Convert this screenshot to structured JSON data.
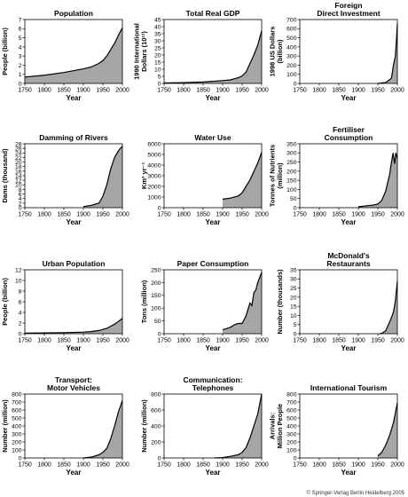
{
  "copyright": "© Springer-Verlag Berlin Heidelberg 2005",
  "style": {
    "fill": "#a6a6a6",
    "stroke": "#000000"
  },
  "chart_data": [
    {
      "type": "area",
      "title": [
        "Population"
      ],
      "ylabel": [
        "People (billion)"
      ],
      "xlabel": "Year",
      "xlim": [
        1750,
        2000
      ],
      "xticks": [
        1750,
        1800,
        1850,
        1900,
        1950,
        2000
      ],
      "ylim": [
        0,
        7
      ],
      "yticks": [
        0,
        1,
        2,
        3,
        4,
        5,
        6,
        7
      ],
      "x": [
        1750,
        1800,
        1850,
        1900,
        1920,
        1940,
        1950,
        1960,
        1970,
        1980,
        1990,
        2000
      ],
      "y": [
        0.7,
        0.9,
        1.2,
        1.6,
        1.8,
        2.2,
        2.5,
        3.0,
        3.7,
        4.4,
        5.3,
        6.1
      ]
    },
    {
      "type": "area",
      "title": [
        "Total Real GDP"
      ],
      "ylabel": [
        "1990 International",
        "Dollars (10¹²)"
      ],
      "xlabel": "Year",
      "xlim": [
        1750,
        2000
      ],
      "xticks": [
        1750,
        1800,
        1850,
        1900,
        1950,
        2000
      ],
      "ylim": [
        0,
        45
      ],
      "yticks": [
        0,
        5,
        10,
        15,
        20,
        25,
        30,
        35,
        40,
        45
      ],
      "x": [
        1750,
        1800,
        1850,
        1900,
        1920,
        1940,
        1950,
        1960,
        1970,
        1980,
        1990,
        2000
      ],
      "y": [
        0.3,
        0.6,
        1.0,
        2.0,
        2.5,
        4.0,
        5.3,
        8.0,
        14.0,
        20.0,
        27.0,
        37.0
      ]
    },
    {
      "type": "area",
      "title": [
        "Foreign",
        "Direct Investment"
      ],
      "ylabel": [
        "1998 US Dollars",
        "(billion)"
      ],
      "xlabel": "Year",
      "xlim": [
        1750,
        2000
      ],
      "xticks": [
        1750,
        1800,
        1850,
        1900,
        1950,
        2000
      ],
      "ylim": [
        0,
        700
      ],
      "yticks": [
        0,
        100,
        200,
        300,
        400,
        500,
        600,
        700
      ],
      "x": [
        1950,
        1960,
        1970,
        1980,
        1985,
        1990,
        1995,
        1998,
        2000
      ],
      "y": [
        0,
        5,
        10,
        40,
        60,
        200,
        300,
        500,
        650
      ]
    },
    {
      "type": "area",
      "title": [
        "Damming of Rivers"
      ],
      "ylabel": [
        "Dams (thousand)"
      ],
      "xlabel": "Year",
      "xlim": [
        1750,
        2000
      ],
      "xticks": [
        1750,
        1800,
        1850,
        1900,
        1950,
        2000
      ],
      "ylim": [
        0,
        28
      ],
      "yticks": [
        0,
        2,
        4,
        6,
        8,
        10,
        12,
        14,
        16,
        18,
        20,
        22,
        24,
        26,
        28
      ],
      "x": [
        1900,
        1920,
        1940,
        1950,
        1960,
        1970,
        1980,
        1990,
        2000
      ],
      "y": [
        0.5,
        1.0,
        2.0,
        5.0,
        10.0,
        17.0,
        22.0,
        25.0,
        27.0
      ]
    },
    {
      "type": "area",
      "title": [
        "Water Use"
      ],
      "ylabel": [
        "Km³ yr⁻¹"
      ],
      "xlabel": "Year",
      "xlim": [
        1750,
        2000
      ],
      "xticks": [
        1750,
        1800,
        1850,
        1900,
        1950,
        2000
      ],
      "ylim": [
        0,
        6000
      ],
      "yticks": [
        0,
        1000,
        2000,
        3000,
        4000,
        5000,
        6000
      ],
      "x": [
        1900,
        1920,
        1940,
        1950,
        1960,
        1970,
        1980,
        1990,
        2000
      ],
      "y": [
        800,
        900,
        1100,
        1400,
        2000,
        2600,
        3400,
        4200,
        5200
      ]
    },
    {
      "type": "area",
      "title": [
        "Fertiliser",
        "Consumption"
      ],
      "ylabel": [
        "Tonnes of Nutrients",
        "(million)"
      ],
      "xlabel": "Year",
      "xlim": [
        1750,
        2000
      ],
      "xticks": [
        1750,
        1800,
        1850,
        1900,
        1950,
        2000
      ],
      "ylim": [
        0,
        350
      ],
      "yticks": [
        0,
        50,
        100,
        150,
        200,
        250,
        300,
        350
      ],
      "x": [
        1900,
        1920,
        1940,
        1950,
        1960,
        1970,
        1980,
        1985,
        1989,
        1993,
        1996,
        2000
      ],
      "y": [
        5,
        10,
        15,
        20,
        40,
        90,
        180,
        250,
        300,
        240,
        300,
        270
      ]
    },
    {
      "type": "area",
      "title": [
        "Urban Population"
      ],
      "ylabel": [
        "People (billion)"
      ],
      "xlabel": "Year",
      "xlim": [
        1750,
        2000
      ],
      "xticks": [
        1750,
        1800,
        1850,
        1900,
        1950,
        2000
      ],
      "ylim": [
        0,
        12
      ],
      "yticks": [
        0,
        2,
        4,
        6,
        8,
        10,
        12
      ],
      "x": [
        1750,
        1800,
        1850,
        1900,
        1920,
        1940,
        1950,
        1960,
        1970,
        1980,
        1990,
        2000
      ],
      "y": [
        0.1,
        0.15,
        0.2,
        0.3,
        0.4,
        0.6,
        0.8,
        1.0,
        1.4,
        1.8,
        2.3,
        2.9
      ]
    },
    {
      "type": "area",
      "title": [
        "Paper Consumption"
      ],
      "ylabel": [
        "Tons (million)"
      ],
      "xlabel": "Year",
      "xlim": [
        1750,
        2000
      ],
      "xticks": [
        1750,
        1800,
        1850,
        1900,
        1950,
        2000
      ],
      "ylim": [
        0,
        250
      ],
      "yticks": [
        0,
        50,
        100,
        150,
        200,
        250
      ],
      "x": [
        1900,
        1910,
        1920,
        1930,
        1940,
        1950,
        1960,
        1970,
        1975,
        1980,
        1985,
        1990,
        1995,
        2000
      ],
      "y": [
        15,
        20,
        25,
        35,
        40,
        40,
        70,
        120,
        110,
        160,
        170,
        200,
        220,
        240
      ]
    },
    {
      "type": "area",
      "title": [
        "McDonald's",
        "Restaurants"
      ],
      "ylabel": [
        "Number (thousands)"
      ],
      "xlabel": "Year",
      "xlim": [
        1750,
        2000
      ],
      "xticks": [
        1750,
        1800,
        1850,
        1900,
        1950,
        2000
      ],
      "ylim": [
        0,
        35
      ],
      "yticks": [
        0,
        5,
        10,
        15,
        20,
        25,
        30,
        35
      ],
      "x": [
        1955,
        1960,
        1970,
        1980,
        1990,
        1995,
        2000
      ],
      "y": [
        0,
        0.2,
        1.6,
        6.3,
        11.8,
        18.0,
        28.7
      ]
    },
    {
      "type": "area",
      "title": [
        "Transport:",
        "Motor Vehicles"
      ],
      "ylabel": [
        "Number (million)"
      ],
      "xlabel": "Year",
      "xlim": [
        1750,
        2000
      ],
      "xticks": [
        1750,
        1800,
        1850,
        1900,
        1950,
        2000
      ],
      "ylim": [
        0,
        800
      ],
      "yticks": [
        0,
        100,
        200,
        300,
        400,
        500,
        600,
        700,
        800
      ],
      "x": [
        1900,
        1920,
        1940,
        1950,
        1960,
        1970,
        1980,
        1990,
        2000
      ],
      "y": [
        0,
        10,
        40,
        70,
        120,
        240,
        400,
        580,
        720
      ]
    },
    {
      "type": "area",
      "title": [
        "Communication:",
        "Telephones"
      ],
      "ylabel": [
        "Number (million)"
      ],
      "xlabel": "Year",
      "xlim": [
        1750,
        2000
      ],
      "xticks": [
        1750,
        1800,
        1850,
        1900,
        1950,
        2000
      ],
      "ylim": [
        0,
        800
      ],
      "yticks": [
        0,
        200,
        400,
        600,
        800
      ],
      "x": [
        1880,
        1900,
        1920,
        1940,
        1950,
        1960,
        1970,
        1980,
        1990,
        2000
      ],
      "y": [
        0,
        5,
        20,
        40,
        70,
        130,
        250,
        400,
        550,
        800
      ]
    },
    {
      "type": "area",
      "title": [
        "International Tourism"
      ],
      "ylabel": [
        "Arrivals:",
        "Million People"
      ],
      "xlabel": "Year",
      "xlim": [
        1750,
        2000
      ],
      "xticks": [
        1750,
        1800,
        1850,
        1900,
        1950,
        2000
      ],
      "ylim": [
        0,
        800
      ],
      "yticks": [
        0,
        100,
        200,
        300,
        400,
        500,
        600,
        700,
        800
      ],
      "x": [
        1950,
        1960,
        1970,
        1980,
        1990,
        2000
      ],
      "y": [
        25,
        70,
        160,
        280,
        440,
        690
      ]
    }
  ]
}
